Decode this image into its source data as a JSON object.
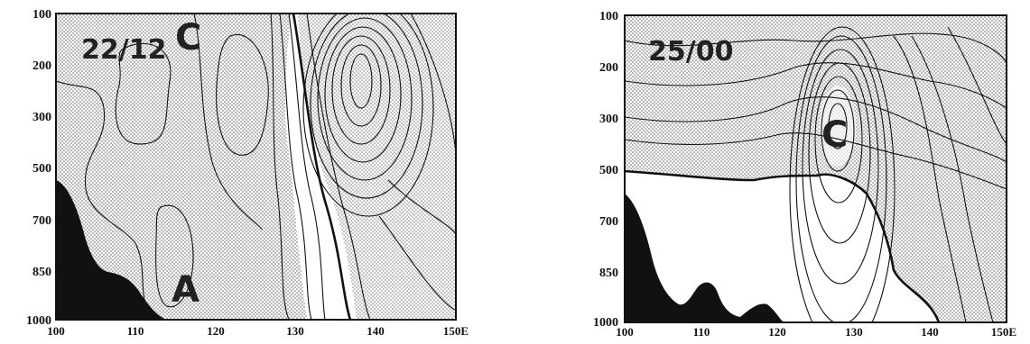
{
  "chart_data": [
    {
      "type": "contour",
      "panel_label": "22/12",
      "center_labels": [
        "C",
        "A"
      ],
      "x_ticks": [
        "100",
        "110",
        "120",
        "130",
        "140",
        "150E"
      ],
      "y_ticks": [
        "100",
        "200",
        "300",
        "500",
        "700",
        "850",
        "1000"
      ],
      "xlim": [
        100,
        150
      ],
      "ylim": [
        1000,
        100
      ],
      "x_unit": "E",
      "terrain": "shaded black at lower left",
      "shading": "stippled region"
    },
    {
      "type": "contour",
      "panel_label": "25/00",
      "center_labels": [
        "C"
      ],
      "x_ticks": [
        "100",
        "110",
        "120",
        "130",
        "140",
        "150E"
      ],
      "y_ticks": [
        "100",
        "200",
        "300",
        "500",
        "700",
        "850",
        "1000"
      ],
      "xlim": [
        100,
        150
      ],
      "ylim": [
        1000,
        100
      ],
      "x_unit": "E",
      "terrain": "shaded black at lower left",
      "shading": "stippled region"
    }
  ]
}
